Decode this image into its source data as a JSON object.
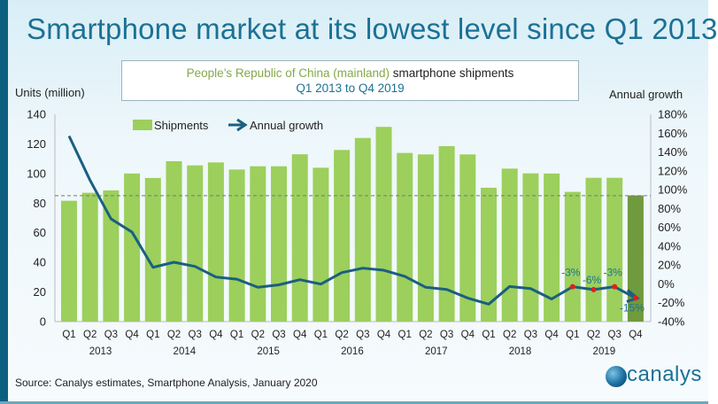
{
  "title": "Smartphone market at its lowest level since Q1 2013",
  "subtitle": {
    "region": "People’s Republic of China (mainland)",
    "metric": "smartphone shipments",
    "period": "Q1 2013 to Q4 2019"
  },
  "source": "Source: Canalys estimates, Smartphone Analysis, January 2020",
  "logo_text": "canalys",
  "colors": {
    "bar": "#9ccf5c",
    "bar_highlight": "#6f9a3e",
    "line": "#1a5f80",
    "title": "#1b7195",
    "marker": "#e02020",
    "annotation": "#1b7195"
  },
  "chart_data": {
    "type": "bar+line",
    "ylabel": "Units (million)",
    "y2label": "Annual growth",
    "ylim": [
      0,
      140
    ],
    "y2lim": [
      -40,
      180
    ],
    "yticks": [
      "0",
      "20",
      "40",
      "60",
      "80",
      "100",
      "120",
      "140"
    ],
    "y2ticks": [
      "-40%",
      "-20%",
      "0%",
      "20%",
      "40%",
      "60%",
      "80%",
      "100%",
      "120%",
      "140%",
      "160%",
      "180%"
    ],
    "reference_line": 85,
    "legend": {
      "placement": "top",
      "items": [
        "Shipments",
        "Annual growth"
      ]
    },
    "categories": [
      "Q1",
      "Q2",
      "Q3",
      "Q4",
      "Q1",
      "Q2",
      "Q3",
      "Q4",
      "Q1",
      "Q2",
      "Q3",
      "Q4",
      "Q1",
      "Q2",
      "Q3",
      "Q4",
      "Q1",
      "Q2",
      "Q3",
      "Q4",
      "Q1",
      "Q2",
      "Q3",
      "Q4",
      "Q1",
      "Q2",
      "Q3",
      "Q4"
    ],
    "years": [
      "2013",
      "2014",
      "2015",
      "2016",
      "2017",
      "2018",
      "2019"
    ],
    "series": [
      {
        "name": "Shipments",
        "type": "bar",
        "axis": "left",
        "values": [
          81.6,
          87,
          88.6,
          100,
          97,
          108.3,
          105.5,
          107.5,
          102.7,
          104.9,
          104.9,
          113,
          103.9,
          115.9,
          124,
          131.5,
          113.9,
          112.9,
          118.5,
          112.9,
          90.4,
          103.3,
          100.1,
          100,
          87.6,
          97.1,
          97.1,
          85.2
        ]
      },
      {
        "name": "Annual growth",
        "type": "line",
        "axis": "right",
        "unit": "%",
        "values": [
          157,
          110,
          69,
          55,
          17.6,
          23,
          18.6,
          7.3,
          5,
          -3.6,
          -1,
          4.5,
          -0.2,
          12,
          16.7,
          14.5,
          8,
          -3.6,
          -5.9,
          -15,
          -21.5,
          -2.7,
          -5,
          -16,
          -3,
          -6,
          -3,
          -15
        ]
      }
    ],
    "annotations": [
      {
        "category_index": 24,
        "text": "-3%"
      },
      {
        "category_index": 25,
        "text": "-6%"
      },
      {
        "category_index": 26,
        "text": "-3%"
      },
      {
        "category_index": 27,
        "text": "-15%"
      }
    ]
  }
}
